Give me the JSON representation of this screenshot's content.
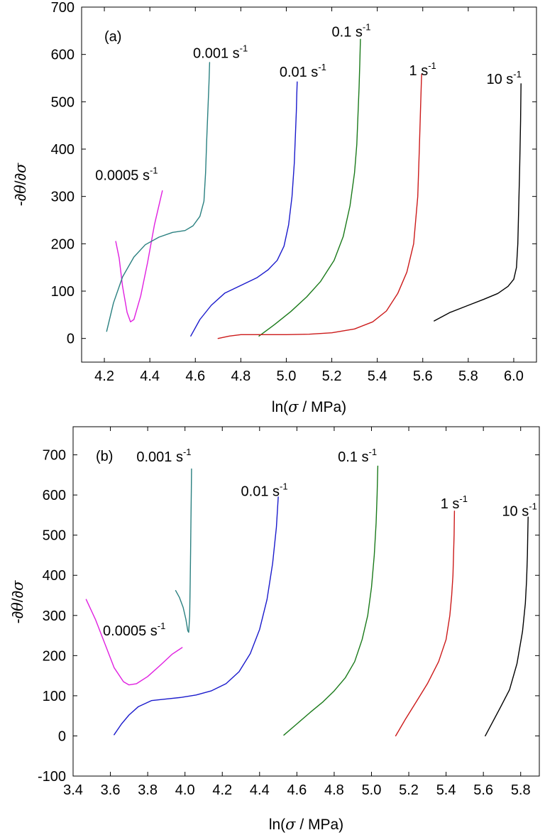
{
  "chart_data": [
    {
      "type": "line",
      "panel_label": "(a)",
      "xlabel_pre": "ln(",
      "xlabel_sym": "σ",
      "xlabel_post": " / MPa)",
      "ylabel_pre": "-∂",
      "ylabel_theta": "θ",
      "ylabel_mid": "/∂",
      "ylabel_sigma": "σ",
      "xlim": [
        4.1,
        6.1
      ],
      "ylim": [
        -50,
        700
      ],
      "xticks": [
        4.2,
        4.4,
        4.6,
        4.8,
        5.0,
        5.2,
        5.4,
        5.6,
        5.8,
        6.0
      ],
      "xtick_labels": [
        "4.2",
        "4.4",
        "4.6",
        "4.8",
        "5.0",
        "5.2",
        "5.4",
        "5.6",
        "5.8",
        "6.0"
      ],
      "yticks": [
        0,
        100,
        200,
        300,
        400,
        500,
        600,
        700
      ],
      "ytick_labels": [
        "0",
        "100",
        "200",
        "300",
        "400",
        "500",
        "600",
        "700"
      ],
      "series": [
        {
          "name": "0.0005",
          "color": "#e020e0",
          "x": [
            4.25,
            4.265,
            4.28,
            4.3,
            4.315,
            4.33,
            4.36,
            4.39,
            4.42,
            4.455
          ],
          "y": [
            205,
            170,
            110,
            55,
            35,
            40,
            90,
            160,
            240,
            312
          ]
        },
        {
          "name": "0.001",
          "color": "#2a8080",
          "x": [
            4.21,
            4.24,
            4.28,
            4.33,
            4.38,
            4.44,
            4.5,
            4.555,
            4.59,
            4.62,
            4.638,
            4.645,
            4.65,
            4.655,
            4.66,
            4.663
          ],
          "y": [
            15,
            75,
            130,
            172,
            198,
            214,
            224,
            228,
            238,
            258,
            290,
            350,
            420,
            480,
            540,
            583
          ]
        },
        {
          "name": "0.01",
          "color": "#1a1acc",
          "x": [
            4.58,
            4.62,
            4.67,
            4.73,
            4.8,
            4.87,
            4.92,
            4.96,
            4.99,
            5.01,
            5.025,
            5.035,
            5.04,
            5.044,
            5.046,
            5.048
          ],
          "y": [
            5,
            40,
            70,
            96,
            112,
            128,
            145,
            165,
            195,
            240,
            300,
            370,
            430,
            480,
            515,
            542
          ]
        },
        {
          "name": "0.1",
          "color": "#1a7a1a",
          "x": [
            4.88,
            4.95,
            5.02,
            5.09,
            5.15,
            5.21,
            5.25,
            5.28,
            5.3,
            5.31,
            5.315,
            5.32,
            5.323,
            5.326
          ],
          "y": [
            5,
            30,
            57,
            88,
            120,
            165,
            215,
            280,
            350,
            410,
            470,
            530,
            580,
            632
          ]
        },
        {
          "name": "1",
          "color": "#cc1a1a",
          "x": [
            4.7,
            4.75,
            4.8,
            4.9,
            5.0,
            5.1,
            5.2,
            5.3,
            5.38,
            5.44,
            5.49,
            5.53,
            5.56,
            5.578,
            5.585,
            5.59,
            5.595
          ],
          "y": [
            0,
            5,
            8,
            8,
            8,
            9,
            12,
            20,
            35,
            58,
            95,
            140,
            200,
            300,
            400,
            480,
            558
          ]
        },
        {
          "name": "10",
          "color": "#000000",
          "x": [
            5.65,
            5.72,
            5.8,
            5.87,
            5.93,
            5.975,
            6.0,
            6.012,
            6.018,
            6.022,
            6.026,
            6.03,
            6.032
          ],
          "y": [
            37,
            55,
            70,
            83,
            95,
            110,
            125,
            150,
            200,
            280,
            360,
            460,
            538
          ]
        }
      ],
      "annotations": [
        {
          "text": "0.0005 s",
          "sup": "-1",
          "x": 4.16,
          "y": 335
        },
        {
          "text": "0.001 s",
          "sup": "-1",
          "x": 4.59,
          "y": 593
        },
        {
          "text": "0.01 s",
          "sup": "-1",
          "x": 4.97,
          "y": 553
        },
        {
          "text": "0.1 s",
          "sup": "-1",
          "x": 5.2,
          "y": 638
        },
        {
          "text": "1 s",
          "sup": "-1",
          "x": 5.54,
          "y": 556
        },
        {
          "text": "10 s",
          "sup": "-1",
          "x": 5.88,
          "y": 538
        }
      ]
    },
    {
      "type": "line",
      "panel_label": "(b)",
      "xlabel_pre": "ln(",
      "xlabel_sym": "σ",
      "xlabel_post": " / MPa)",
      "ylabel_pre": "-∂",
      "ylabel_theta": "θ",
      "ylabel_mid": "/∂",
      "ylabel_sigma": "σ",
      "xlim": [
        3.4,
        5.9
      ],
      "ylim": [
        -100,
        770
      ],
      "xticks": [
        3.4,
        3.6,
        3.8,
        4.0,
        4.2,
        4.4,
        4.6,
        4.8,
        5.0,
        5.2,
        5.4,
        5.6,
        5.8
      ],
      "xtick_labels": [
        "3.4",
        "3.6",
        "3.8",
        "4.0",
        "4.2",
        "4.4",
        "4.6",
        "4.8",
        "5.0",
        "5.2",
        "5.4",
        "5.6",
        "5.8"
      ],
      "yticks": [
        -100,
        0,
        100,
        200,
        300,
        400,
        500,
        600,
        700
      ],
      "ytick_labels": [
        "-100",
        "0",
        "100",
        "200",
        "300",
        "400",
        "500",
        "600",
        "700"
      ],
      "series": [
        {
          "name": "0.0005",
          "color": "#e020e0",
          "x": [
            3.47,
            3.52,
            3.57,
            3.62,
            3.67,
            3.7,
            3.74,
            3.8,
            3.87,
            3.93,
            3.985
          ],
          "y": [
            340,
            290,
            230,
            170,
            135,
            127,
            130,
            148,
            177,
            203,
            220
          ]
        },
        {
          "name": "0.001",
          "color": "#2a8080",
          "x": [
            3.95,
            3.97,
            3.99,
            4.005,
            4.015,
            4.02,
            4.025,
            4.028,
            4.03,
            4.032,
            4.034,
            4.035
          ],
          "y": [
            362,
            345,
            320,
            290,
            262,
            258,
            300,
            380,
            460,
            540,
            610,
            665
          ]
        },
        {
          "name": "0.01",
          "color": "#1a1acc",
          "x": [
            3.62,
            3.66,
            3.7,
            3.75,
            3.82,
            3.9,
            3.98,
            4.06,
            4.14,
            4.22,
            4.29,
            4.35,
            4.4,
            4.44,
            4.47,
            4.49,
            4.5
          ],
          "y": [
            3,
            30,
            52,
            73,
            88,
            92,
            96,
            102,
            112,
            130,
            160,
            205,
            265,
            340,
            430,
            520,
            595
          ]
        },
        {
          "name": "0.1",
          "color": "#1a7a1a",
          "x": [
            4.53,
            4.6,
            4.67,
            4.74,
            4.8,
            4.86,
            4.91,
            4.95,
            4.98,
            5.0,
            5.015,
            5.025,
            5.03,
            5.034
          ],
          "y": [
            2,
            30,
            58,
            85,
            112,
            145,
            185,
            240,
            300,
            370,
            450,
            530,
            600,
            672
          ]
        },
        {
          "name": "1",
          "color": "#cc1a1a",
          "x": [
            5.13,
            5.18,
            5.24,
            5.3,
            5.36,
            5.4,
            5.42,
            5.43,
            5.437,
            5.44,
            5.443,
            5.445
          ],
          "y": [
            0,
            40,
            85,
            130,
            185,
            240,
            300,
            350,
            400,
            450,
            500,
            560
          ]
        },
        {
          "name": "10",
          "color": "#000000",
          "x": [
            5.61,
            5.65,
            5.69,
            5.74,
            5.78,
            5.81,
            5.825,
            5.832,
            5.836,
            5.838,
            5.84
          ],
          "y": [
            0,
            35,
            70,
            115,
            180,
            260,
            330,
            390,
            450,
            500,
            545
          ]
        }
      ],
      "annotations": [
        {
          "text": "0.0005 s",
          "sup": "-1",
          "x": 3.56,
          "y": 250
        },
        {
          "text": "0.001 s",
          "sup": "-1",
          "x": 3.74,
          "y": 683
        },
        {
          "text": "0.01 s",
          "sup": "-1",
          "x": 4.3,
          "y": 598
        },
        {
          "text": "0.1 s",
          "sup": "-1",
          "x": 4.82,
          "y": 683
        },
        {
          "text": "1 s",
          "sup": "-1",
          "x": 5.37,
          "y": 567
        },
        {
          "text": "10 s",
          "sup": "-1",
          "x": 5.7,
          "y": 548
        }
      ]
    }
  ]
}
